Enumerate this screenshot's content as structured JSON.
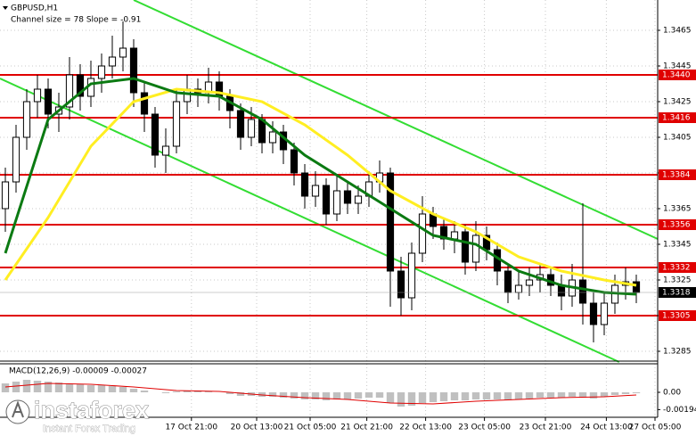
{
  "chart_data": [
    {
      "type": "candlestick",
      "title": "GBPUSD,H1",
      "subtitle": "Channel size = 78 Slope = -0.91",
      "x": [
        0,
        1,
        2,
        3,
        4,
        5,
        6,
        7,
        8,
        9,
        10,
        11,
        12,
        13,
        14,
        15,
        16,
        17,
        18,
        19,
        20,
        21,
        22,
        23,
        24,
        25,
        26,
        27,
        28,
        29,
        30,
        31,
        32,
        33,
        34,
        35,
        36,
        37,
        38,
        39,
        40,
        41,
        42,
        43,
        44,
        45,
        46,
        47,
        48,
        49,
        50,
        51,
        52,
        53,
        54,
        55,
        56,
        57,
        58,
        59
      ],
      "open": [
        1.3365,
        1.338,
        1.3405,
        1.3425,
        1.3432,
        1.3418,
        1.3422,
        1.344,
        1.3428,
        1.3438,
        1.3445,
        1.345,
        1.3455,
        1.343,
        1.3418,
        1.3395,
        1.34,
        1.3425,
        1.3432,
        1.343,
        1.3436,
        1.3428,
        1.342,
        1.3405,
        1.3415,
        1.3402,
        1.3408,
        1.3398,
        1.3385,
        1.3372,
        1.3378,
        1.3362,
        1.3375,
        1.3368,
        1.3372,
        1.338,
        1.3385,
        1.333,
        1.3315,
        1.334,
        1.3362,
        1.3355,
        1.3348,
        1.3352,
        1.3335,
        1.335,
        1.3342,
        1.333,
        1.3318,
        1.3322,
        1.3325,
        1.3328,
        1.3322,
        1.3316,
        1.3325,
        1.3312,
        1.33,
        1.3312,
        1.3322,
        1.3324
      ],
      "high": [
        1.3388,
        1.3412,
        1.3432,
        1.344,
        1.3438,
        1.343,
        1.345,
        1.3446,
        1.3448,
        1.3452,
        1.3462,
        1.347,
        1.346,
        1.3436,
        1.3422,
        1.341,
        1.3432,
        1.344,
        1.3438,
        1.3444,
        1.3442,
        1.3432,
        1.3424,
        1.3422,
        1.3418,
        1.3414,
        1.3412,
        1.3402,
        1.339,
        1.3386,
        1.3382,
        1.3384,
        1.338,
        1.3378,
        1.3386,
        1.3392,
        1.3388,
        1.3338,
        1.3346,
        1.3372,
        1.3366,
        1.336,
        1.3358,
        1.3356,
        1.3358,
        1.3355,
        1.3346,
        1.3334,
        1.333,
        1.3332,
        1.3334,
        1.3332,
        1.3328,
        1.3334,
        1.3368,
        1.3318,
        1.3318,
        1.3328,
        1.3332,
        1.3328
      ],
      "low": [
        1.3352,
        1.3374,
        1.3398,
        1.3416,
        1.341,
        1.3408,
        1.3415,
        1.342,
        1.3422,
        1.343,
        1.3438,
        1.3442,
        1.3422,
        1.3408,
        1.3388,
        1.3385,
        1.3396,
        1.3418,
        1.3422,
        1.3424,
        1.342,
        1.341,
        1.3398,
        1.34,
        1.3396,
        1.3396,
        1.339,
        1.3378,
        1.3365,
        1.3366,
        1.3356,
        1.3358,
        1.3362,
        1.3362,
        1.3366,
        1.3374,
        1.331,
        1.3305,
        1.3308,
        1.3335,
        1.3348,
        1.3342,
        1.334,
        1.3328,
        1.333,
        1.3336,
        1.3322,
        1.3312,
        1.3314,
        1.3316,
        1.3318,
        1.3316,
        1.3308,
        1.331,
        1.33,
        1.329,
        1.3294,
        1.3306,
        1.3314,
        1.3312
      ],
      "close": [
        1.338,
        1.3405,
        1.3425,
        1.3432,
        1.3418,
        1.3422,
        1.344,
        1.3428,
        1.3438,
        1.3445,
        1.345,
        1.3455,
        1.343,
        1.3418,
        1.3395,
        1.34,
        1.3425,
        1.3432,
        1.343,
        1.3436,
        1.3428,
        1.342,
        1.3405,
        1.3415,
        1.3402,
        1.3408,
        1.3398,
        1.3385,
        1.3372,
        1.3378,
        1.3362,
        1.3375,
        1.3368,
        1.3372,
        1.338,
        1.3385,
        1.333,
        1.3315,
        1.334,
        1.3362,
        1.3355,
        1.3348,
        1.3352,
        1.3335,
        1.335,
        1.3342,
        1.333,
        1.3318,
        1.3322,
        1.3325,
        1.3328,
        1.3322,
        1.3316,
        1.3325,
        1.3312,
        1.33,
        1.3312,
        1.3322,
        1.3324,
        1.3318
      ],
      "overlays": [
        {
          "color": "#ffee22",
          "x": [
            0,
            4,
            8,
            12,
            16,
            20,
            24,
            28,
            32,
            36,
            40,
            44,
            48,
            52,
            56,
            59
          ],
          "values": [
            1.3325,
            1.336,
            1.34,
            1.3425,
            1.3432,
            1.343,
            1.3425,
            1.3412,
            1.3395,
            1.3375,
            1.3362,
            1.3352,
            1.3338,
            1.333,
            1.3325,
            1.3322
          ]
        },
        {
          "color": "#0b7a12",
          "x": [
            0,
            4,
            8,
            12,
            16,
            20,
            24,
            28,
            32,
            36,
            40,
            44,
            48,
            52,
            56,
            59
          ],
          "values": [
            1.334,
            1.3415,
            1.3435,
            1.3438,
            1.343,
            1.3428,
            1.3415,
            1.3395,
            1.338,
            1.3365,
            1.335,
            1.3345,
            1.333,
            1.3322,
            1.3318,
            1.3317
          ]
        }
      ],
      "channel": {
        "color": "#33dd33",
        "lines": [
          {
            "x": [
              12,
              61
            ],
            "values": [
              1.3482,
              1.3348
            ]
          },
          {
            "x": [
              -0.5,
              57.4
            ],
            "values": [
              1.3438,
              1.3279
            ]
          }
        ]
      },
      "levels": {
        "color": "#e00000",
        "values": [
          {
            "value": 1.344,
            "label": "1.3440"
          },
          1.3416,
          1.3384,
          1.3356,
          1.3332,
          1.3305
        ]
      },
      "last": 1.3318,
      "xlim": [
        -0.5,
        61
      ],
      "ylim": [
        1.32795,
        1.3482
      ],
      "yticks": [
        1.3465,
        1.3445,
        1.3425,
        1.3405,
        1.3385,
        1.3365,
        1.3345,
        1.3325,
        1.3305,
        1.3285
      ],
      "xticks": [
        {
          "value": 17.4,
          "label": "17 Oct 21:00"
        },
        {
          "value": 23.5,
          "label": "20 Oct 13:00"
        },
        {
          "value": 28.5,
          "label": "21 Oct 05:00"
        },
        {
          "value": 33.8,
          "label": "21 Oct 21:00"
        },
        {
          "value": 39.3,
          "label": "22 Oct 13:00"
        },
        {
          "value": 44.8,
          "label": "23 Oct 05:00"
        },
        {
          "value": 50.5,
          "label": "23 Oct 21:00"
        },
        {
          "value": 56.2,
          "label": "24 Oct 13:00"
        },
        {
          "value": 60.75,
          "label": "27 Oct 05:00"
        }
      ],
      "grid": true
    },
    {
      "type": "macd",
      "title": "MACD(12,26,9) -0.00009 -0.00027",
      "values": [
        0.001,
        0.0012,
        0.0014,
        0.0013,
        0.0012,
        0.0011,
        0.001,
        0.0009,
        0.0008,
        0.0008,
        0.0007,
        0.0006,
        0.0004,
        0.0002,
        0.0,
        -0.0001,
        0.0001,
        0.0002,
        0.0002,
        0.0001,
        0.0,
        -0.0002,
        -0.0004,
        -0.0004,
        -0.0005,
        -0.0005,
        -0.0006,
        -0.0007,
        -0.0008,
        -0.0008,
        -0.0009,
        -0.0008,
        -0.0008,
        -0.0007,
        -0.0006,
        -0.0006,
        -0.0012,
        -0.0016,
        -0.0015,
        -0.0012,
        -0.0011,
        -0.001,
        -0.0009,
        -0.0009,
        -0.0008,
        -0.0008,
        -0.0008,
        -0.0009,
        -0.0008,
        -0.0007,
        -0.0006,
        -0.0006,
        -0.0006,
        -0.0005,
        -0.0006,
        -0.0007,
        -0.0005,
        -0.0003,
        -0.0002,
        -0.0001
      ],
      "color": "#c0c0c0",
      "signal": {
        "color": "#e00000",
        "x": [
          0,
          4,
          8,
          12,
          16,
          20,
          24,
          28,
          32,
          36,
          40,
          44,
          48,
          52,
          56,
          59
        ],
        "values": [
          0.0006,
          0.001,
          0.0009,
          0.0006,
          0.0002,
          0.0001,
          -0.0003,
          -0.0006,
          -0.0008,
          -0.0012,
          -0.0013,
          -0.001,
          -0.0008,
          -0.0006,
          -0.0005,
          -0.0003
        ]
      },
      "ylim": [
        -0.0028,
        0.0032
      ],
      "yticks": [
        {
          "value": 0,
          "label": "0.00"
        },
        -0.00194
      ]
    }
  ],
  "watermark": {
    "brand": "instaforex",
    "tagline": "Instant Forex Trading"
  }
}
